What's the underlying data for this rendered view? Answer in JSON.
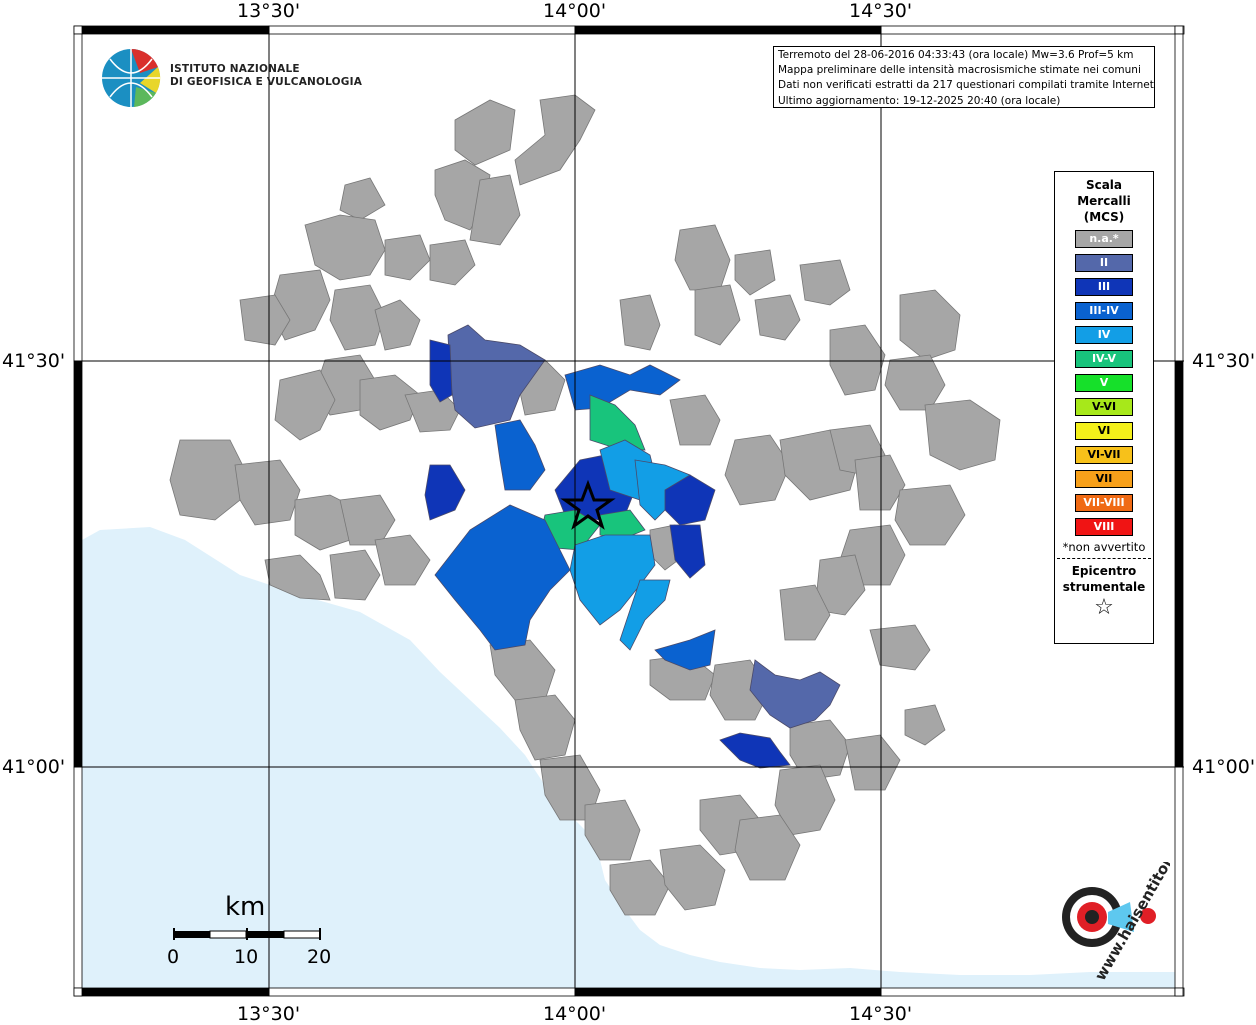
{
  "map": {
    "lon_labels": [
      "13°30'",
      "14°00'",
      "14°30'"
    ],
    "lat_labels": [
      "41°30'",
      "41°00'"
    ],
    "colors": {
      "sea": "#dff1fb",
      "land": "#ffffff",
      "na": "#a6a6a6",
      "II": "#5468aa",
      "III": "#0f35b7",
      "III-IV": "#0a62d0",
      "IV": "#129ee6",
      "IV-V": "#18c47c",
      "epicenter": "#000000"
    },
    "epicenter_label": "Epicentro strumentale"
  },
  "info": {
    "line1": "Terremoto del 28-06-2016 04:33:43 (ora locale) Mw=3.6 Prof=5 km",
    "line2": "Mappa preliminare delle intensità macrosismiche stimate nei comuni",
    "line3": "Dati non verificati estratti da 217 questionari compilati tramite Internet.",
    "line4": "Ultimo aggiornamento: 19-12-2025 20:40 (ora locale)"
  },
  "legend": {
    "title1": "Scala",
    "title2": "Mercalli",
    "title3": "(MCS)",
    "items": [
      {
        "label": "n.a.*",
        "color": "#a6a6a6"
      },
      {
        "label": "II",
        "color": "#5468aa"
      },
      {
        "label": "III",
        "color": "#0f35b7"
      },
      {
        "label": "III-IV",
        "color": "#0a62d0"
      },
      {
        "label": "IV",
        "color": "#129ee6"
      },
      {
        "label": "IV-V",
        "color": "#18c47c"
      },
      {
        "label": "V",
        "color": "#16e02a"
      },
      {
        "label": "V-VI",
        "color": "#a7e81a"
      },
      {
        "label": "VI",
        "color": "#f4f01a"
      },
      {
        "label": "VI-VII",
        "color": "#f7c11a"
      },
      {
        "label": "VII",
        "color": "#f7a01a"
      },
      {
        "label": "VII-VIII",
        "color": "#f06a14"
      },
      {
        "label": "VIII",
        "color": "#f01414"
      }
    ],
    "note": "*non avvertito",
    "epi1": "Epicentro",
    "epi2": "strumentale",
    "epi_symbol": "☆"
  },
  "ingv": {
    "line1": "ISTITUTO NAZIONALE",
    "line2": "DI GEOFISICA E VULCANOLOGIA"
  },
  "scalebar": {
    "unit": "km",
    "ticks": [
      "0",
      "10",
      "20"
    ]
  },
  "logo": {
    "text": "www.haisentitoilterremoto.it"
  }
}
